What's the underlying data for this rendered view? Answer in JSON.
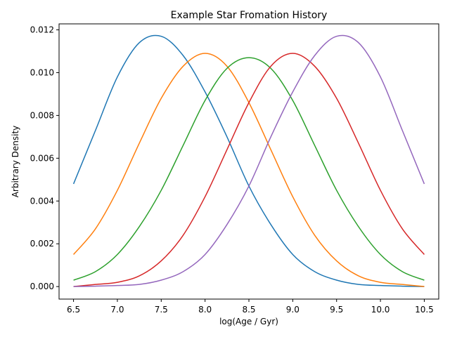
{
  "chart_data": {
    "type": "line",
    "title": "Example Star Fromation History",
    "xlabel": "log(Age / Gyr)",
    "ylabel": "Arbitrary Density",
    "xlim": [
      6.335,
      10.665
    ],
    "ylim": [
      -0.000585,
      0.01228
    ],
    "xticks": [
      6.5,
      7.0,
      7.5,
      8.0,
      8.5,
      9.0,
      9.5,
      10.0,
      10.5
    ],
    "xtick_labels": [
      "6.5",
      "7.0",
      "7.5",
      "8.0",
      "8.5",
      "9.0",
      "9.5",
      "10.0",
      "10.5"
    ],
    "yticks": [
      0.0,
      0.002,
      0.004,
      0.006,
      0.008,
      0.01,
      0.012
    ],
    "ytick_labels": [
      "0.000",
      "0.002",
      "0.004",
      "0.006",
      "0.008",
      "0.010",
      "0.012"
    ],
    "grid": false,
    "legend": "none",
    "x": [
      6.5,
      6.75,
      7.0,
      7.25,
      7.5,
      7.75,
      8.0,
      8.25,
      8.5,
      8.75,
      9.0,
      9.25,
      9.5,
      9.75,
      10.0,
      10.25,
      10.5
    ],
    "series": [
      {
        "color": "#1f77b4",
        "values": [
          0.0048,
          0.0073,
          0.0098,
          0.0114,
          0.0117,
          0.0108,
          0.0091,
          0.007,
          0.0047,
          0.0029,
          0.0015,
          0.0007,
          0.0003,
          0.0001,
          5e-05,
          2e-05,
          0.0
        ]
      },
      {
        "color": "#ff7f0e",
        "values": [
          0.0015,
          0.0027,
          0.0045,
          0.0067,
          0.0088,
          0.0103,
          0.0109,
          0.0103,
          0.0086,
          0.0064,
          0.0042,
          0.0024,
          0.0012,
          0.0005,
          0.0002,
          0.0001,
          0.0
        ]
      },
      {
        "color": "#2ca02c",
        "values": [
          0.0003,
          0.0007,
          0.0015,
          0.0028,
          0.0045,
          0.0066,
          0.0087,
          0.0102,
          0.0107,
          0.0102,
          0.0087,
          0.0066,
          0.0045,
          0.0028,
          0.0015,
          0.0007,
          0.0003
        ]
      },
      {
        "color": "#d62728",
        "values": [
          0.0,
          0.0001,
          0.0002,
          0.0005,
          0.0012,
          0.0024,
          0.0042,
          0.0064,
          0.0086,
          0.0103,
          0.0109,
          0.0103,
          0.0088,
          0.0067,
          0.0045,
          0.0027,
          0.0015
        ]
      },
      {
        "color": "#9467bd",
        "values": [
          0.0,
          2e-05,
          5e-05,
          0.0001,
          0.0003,
          0.0007,
          0.0015,
          0.0029,
          0.0047,
          0.007,
          0.0091,
          0.0108,
          0.0117,
          0.0114,
          0.0098,
          0.0073,
          0.0048
        ]
      }
    ]
  }
}
